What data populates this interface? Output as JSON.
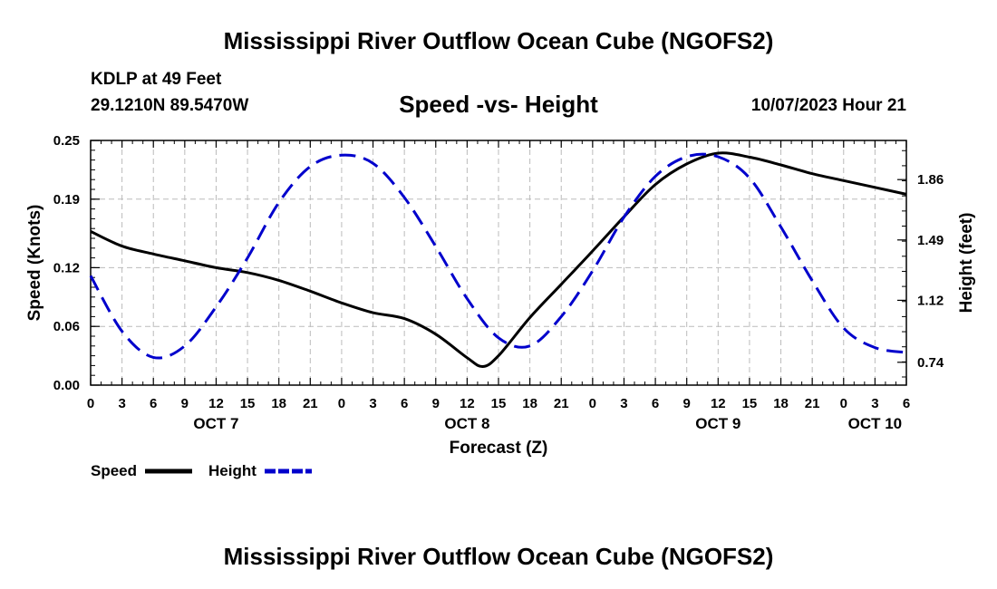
{
  "header": {
    "title": "Mississippi River Outflow Ocean Cube (NGOFS2)",
    "station": "KDLP at 49 Feet",
    "coordinates": "29.1210N  89.5470W",
    "subtitle": "Speed -vs- Height",
    "datetime": "10/07/2023 Hour 21"
  },
  "footer": {
    "title": "Mississippi River Outflow Ocean Cube (NGOFS2)"
  },
  "chart_data": {
    "type": "line",
    "title": "Speed -vs- Height",
    "xlabel": "Forecast (Z)",
    "ylabel": "Speed (Knots)",
    "y2label": "Height (feet)",
    "xlim": [
      0,
      78
    ],
    "ylim": [
      0,
      0.25
    ],
    "y2lim": [
      0.6,
      2.1
    ],
    "x_tick_labels": [
      "0",
      "3",
      "6",
      "9",
      "12",
      "15",
      "18",
      "21",
      "0",
      "3",
      "6",
      "9",
      "12",
      "15",
      "18",
      "21",
      "0",
      "3",
      "6",
      "9",
      "12",
      "15",
      "18",
      "21",
      "0",
      "3",
      "6"
    ],
    "y_ticks": [
      0.0,
      0.06,
      0.12,
      0.19,
      0.25
    ],
    "y_tick_labels": [
      "0.00",
      "0.06",
      "0.12",
      "0.19",
      "0.25"
    ],
    "y2_ticks": [
      0.74,
      1.12,
      1.49,
      1.86
    ],
    "y2_tick_labels": [
      "0.74",
      "1.12",
      "1.49",
      "1.86"
    ],
    "day_labels": [
      {
        "x": 12,
        "label": "OCT 7"
      },
      {
        "x": 36,
        "label": "OCT 8"
      },
      {
        "x": 60,
        "label": "OCT 9"
      },
      {
        "x": 75,
        "label": "OCT 10"
      }
    ],
    "series": [
      {
        "name": "Speed",
        "axis": "left",
        "color": "#000000",
        "style": "solid",
        "x": [
          0,
          3,
          6,
          9,
          12,
          15,
          18,
          21,
          24,
          27,
          30,
          33,
          36,
          37.5,
          39,
          42,
          45,
          48,
          51,
          54,
          57,
          60,
          63,
          66,
          69,
          72,
          75,
          78
        ],
        "values": [
          0.157,
          0.142,
          0.134,
          0.127,
          0.12,
          0.115,
          0.107,
          0.096,
          0.084,
          0.074,
          0.068,
          0.052,
          0.028,
          0.019,
          0.03,
          0.069,
          0.103,
          0.137,
          0.172,
          0.205,
          0.226,
          0.237,
          0.233,
          0.225,
          0.216,
          0.209,
          0.202,
          0.195
        ],
        "legend_label": "Speed"
      },
      {
        "name": "Height",
        "axis": "right",
        "color": "#0000cc",
        "style": "dashed",
        "x": [
          0,
          3,
          6,
          9,
          12,
          15,
          18,
          21,
          24,
          27,
          30,
          33,
          36,
          39,
          42,
          45,
          48,
          51,
          54,
          57,
          60,
          63,
          66,
          69,
          72,
          75,
          78
        ],
        "values": [
          1.27,
          0.93,
          0.77,
          0.84,
          1.08,
          1.38,
          1.72,
          1.94,
          2.01,
          1.96,
          1.75,
          1.45,
          1.13,
          0.89,
          0.84,
          1.02,
          1.3,
          1.63,
          1.88,
          2.0,
          2.0,
          1.87,
          1.57,
          1.24,
          0.95,
          0.83,
          0.8
        ],
        "legend_label": "Height"
      }
    ],
    "grid": true
  }
}
